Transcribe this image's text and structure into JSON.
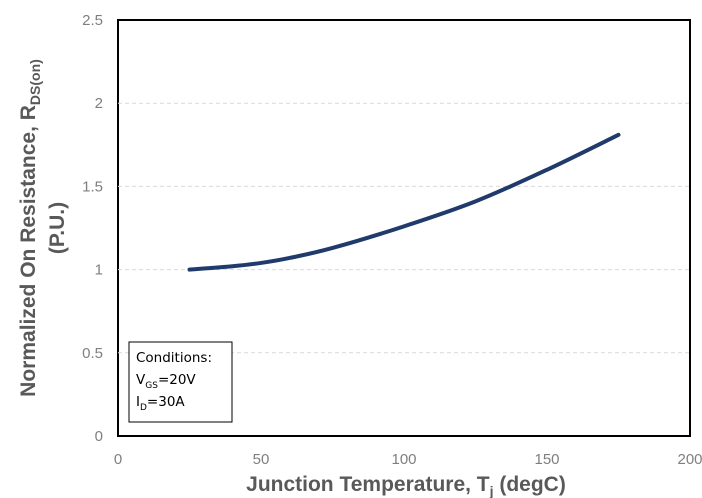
{
  "chart_data": {
    "type": "line",
    "x": [
      25,
      40,
      50,
      60,
      75,
      100,
      125,
      150,
      175
    ],
    "series": [
      {
        "values": [
          1.0,
          1.02,
          1.04,
          1.07,
          1.13,
          1.26,
          1.41,
          1.6,
          1.81
        ],
        "color": "#1f3a6b"
      }
    ],
    "xlim": [
      0,
      200
    ],
    "ylim": [
      0,
      2.5
    ],
    "xticks": [
      0,
      50,
      100,
      150,
      200
    ],
    "yticks": [
      0,
      0.5,
      1,
      1.5,
      2,
      2.5
    ],
    "xtick_labels": [
      "0",
      "50",
      "100",
      "150",
      "200"
    ],
    "ytick_labels": [
      "0",
      "0.5",
      "1",
      "1.5",
      "2",
      "2.5"
    ],
    "xlabel": {
      "main": "Junction Temperature, T",
      "sub": "j",
      "tail": " (degC)"
    },
    "ylabel": {
      "line1_main": "Normalized On Resistance, R",
      "line1_sub": "DS(on)",
      "line2": "(P.U.)"
    },
    "grid": "horizontal dashed",
    "annotation": {
      "heading": "Conditions:",
      "line1_main": "V",
      "line1_sub": "GS",
      "line1_tail": "=20V",
      "line2_main": "I",
      "line2_sub": "D",
      "line2_tail": "=30A"
    }
  }
}
